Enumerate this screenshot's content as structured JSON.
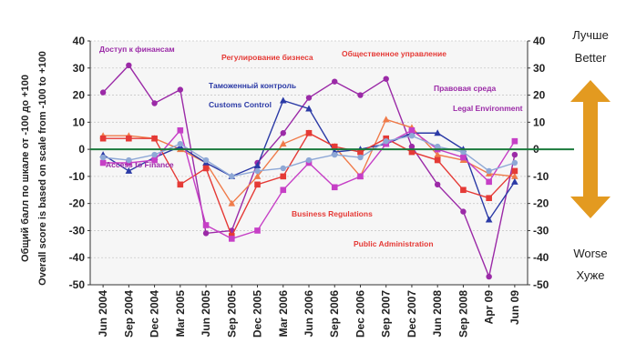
{
  "chart_data": {
    "type": "line",
    "x": [
      "Jun 2004",
      "Sep 2004",
      "Dec 2004",
      "Mar 2005",
      "Jun 2005",
      "Sep 2005",
      "Dec 2005",
      "Mar 2006",
      "Jun 2006",
      "Sep 2006",
      "Dec 2006",
      "Sep 2007",
      "Dec 2007",
      "Jun 2008",
      "Sep 2008",
      "Apr 09",
      "Jun 09"
    ],
    "ylim": [
      -50,
      40
    ],
    "yticks": [
      40,
      30,
      20,
      10,
      0,
      -10,
      -20,
      -30,
      -40,
      -50
    ],
    "ylabel_ru": "Общий балл  по шкале от -100 до +100",
    "ylabel_en": "Overall score is based on scale from -100 to +100",
    "zero_line_color": "#1a7a3c",
    "grid": true,
    "series": [
      {
        "name": "Доступ к финансам / Access to Finance",
        "color": "#9b2aa7",
        "marker": "circle",
        "values": [
          21,
          31,
          17,
          22,
          -31,
          -30,
          -5,
          6,
          19,
          25,
          20,
          26,
          1,
          -13,
          -23,
          -47,
          -2
        ]
      },
      {
        "name": "Регулирование бизнеса / Business Regulations",
        "color": "#f07b4a",
        "marker": "triangle",
        "values": [
          5,
          5,
          4,
          0,
          -5,
          -20,
          -10,
          2,
          6,
          1,
          -10,
          11,
          8,
          -2,
          -4,
          -9,
          -10
        ]
      },
      {
        "name": "Таможенный контроль / Customs Control",
        "color": "#2b3aa6",
        "marker": "triangle",
        "values": [
          -2,
          -8,
          -3,
          1,
          -5,
          -10,
          -6,
          18,
          15,
          -1,
          0,
          2,
          6,
          6,
          0,
          -26,
          -12
        ]
      },
      {
        "name": "Общественное управление / Public Administration",
        "color": "#e53a36",
        "marker": "square",
        "values": [
          4,
          4,
          4,
          -13,
          -7,
          -32,
          -13,
          -10,
          6,
          1,
          -1,
          4,
          -1,
          -4,
          -15,
          -18,
          -8
        ]
      },
      {
        "name": "Правовая среда / Legal Environment",
        "color": "#c63fc6",
        "marker": "square",
        "values": [
          -5,
          -5,
          -4,
          7,
          -28,
          -33,
          -30,
          -15,
          -5,
          -14,
          -10,
          2,
          7,
          0,
          -3,
          -12,
          3
        ]
      },
      {
        "name": "",
        "color": "#8ea8d6",
        "marker": "circle",
        "values": [
          -3,
          -4,
          -2,
          2,
          -4,
          -10,
          -8,
          -7,
          -4,
          -2,
          -3,
          3,
          5,
          1,
          -1,
          -8,
          -5
        ]
      }
    ],
    "annotations": [
      {
        "text": "Доступ к финансам",
        "color": "#9b2aa7"
      },
      {
        "text": "Access to Finance",
        "color": "#9b2aa7"
      },
      {
        "text": "Регулирование бизнеса",
        "color": "#e53a36"
      },
      {
        "text": "Business Regulations",
        "color": "#e53a36"
      },
      {
        "text": "Таможенный контроль",
        "color": "#2b3aa6"
      },
      {
        "text": "Customs Control",
        "color": "#2b3aa6"
      },
      {
        "text": "Общественное управление",
        "color": "#e53a36"
      },
      {
        "text": "Public Administration",
        "color": "#e53a36"
      },
      {
        "text": "Правовая среда",
        "color": "#9b2aa7"
      },
      {
        "text": "Legal Environment",
        "color": "#9b2aa7"
      }
    ],
    "side_labels": {
      "better_ru": "Лучше",
      "better_en": "Better",
      "worse_en": "Worse",
      "worse_ru": "Хуже",
      "arrow_color": "#e39a20"
    }
  }
}
